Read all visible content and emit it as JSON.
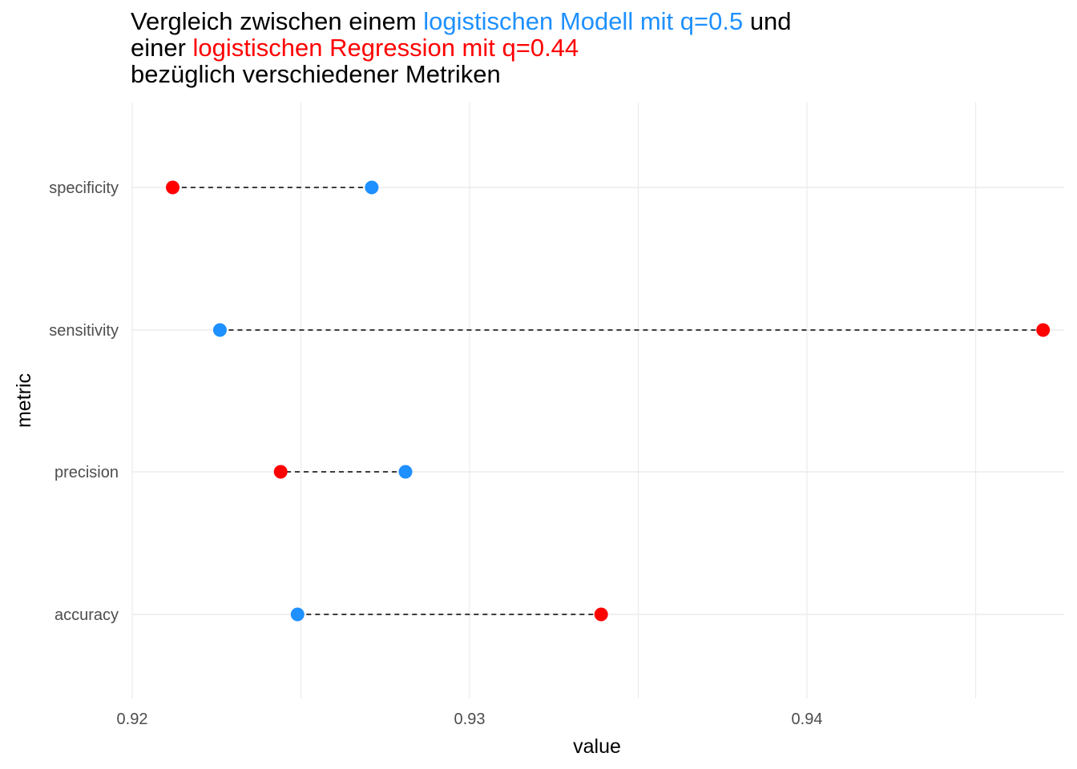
{
  "title": {
    "line1_prefix": "Vergleich zwischen einem ",
    "line1_model": "logistischen Modell mit q=0.5",
    "line1_suffix": " und",
    "line2_prefix": "einer ",
    "line2_model": "logistischen Regression mit q=0.44",
    "line3": "bezüglich verschiedener Metriken"
  },
  "colors": {
    "model_a": "#1E90FF",
    "model_b": "#FF0000",
    "grid": "#EBEBEB",
    "connector": "#000000"
  },
  "chart_data": {
    "type": "scatter",
    "subtype": "dumbbell",
    "xlabel": "value",
    "ylabel": "metric",
    "xlim": [
      0.92,
      0.9475
    ],
    "x_ticks": [
      0.92,
      0.93,
      0.94
    ],
    "x_tick_labels": [
      "0.92",
      "0.93",
      "0.94"
    ],
    "categories": [
      "specificity",
      "sensitivity",
      "precision",
      "accuracy"
    ],
    "series": [
      {
        "name": "logistischen Modell mit q=0.5",
        "color": "#1E90FF",
        "values": [
          0.9271,
          0.9226,
          0.9281,
          0.9249
        ]
      },
      {
        "name": "logistischen Regression mit q=0.44",
        "color": "#FF0000",
        "values": [
          0.9212,
          0.947,
          0.9244,
          0.9339
        ]
      }
    ],
    "connector": "dashed",
    "grid": true,
    "legend": "none"
  }
}
